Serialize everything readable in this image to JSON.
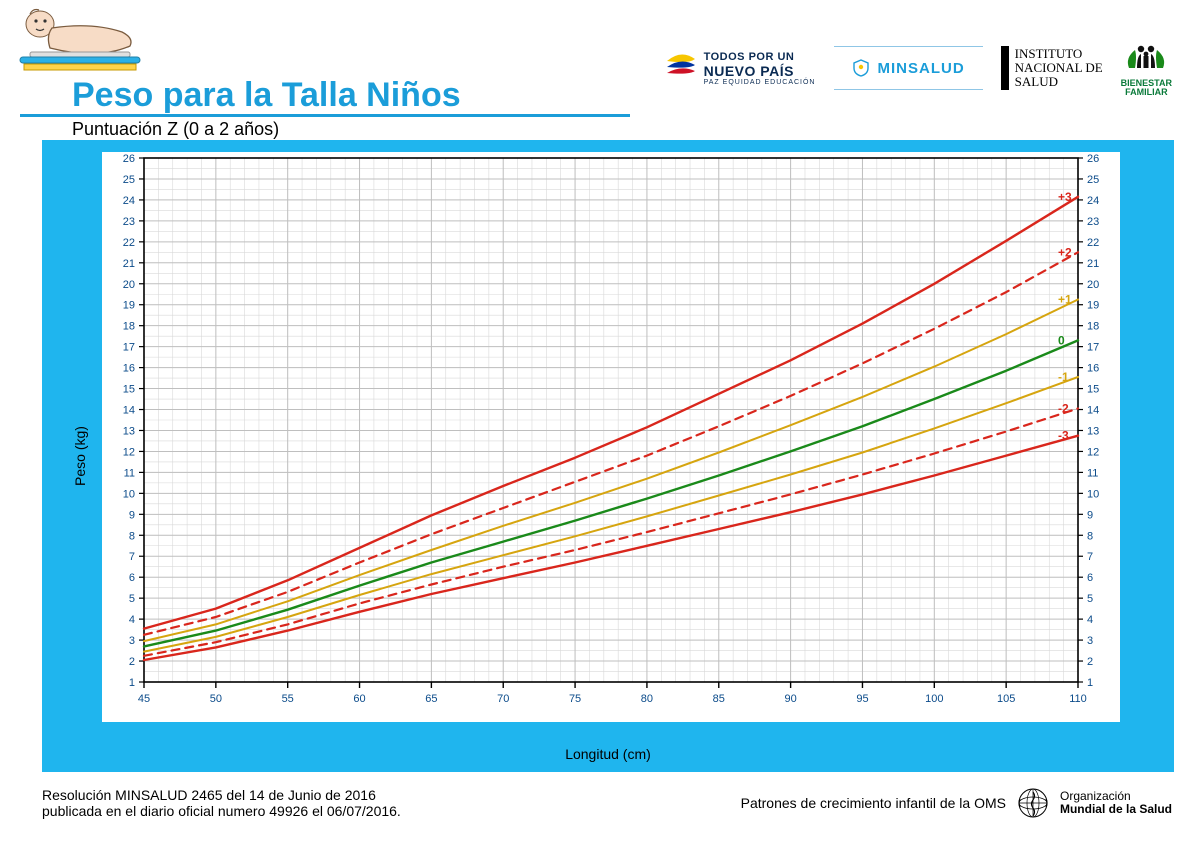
{
  "header": {
    "title": "Peso para la Talla Niños",
    "subtitle": "Puntuación Z (0 a 2 años)",
    "title_color": "#1b9dd9"
  },
  "logos": {
    "todos": {
      "line1": "TODOS POR UN",
      "line2": "NUEVO PAÍS",
      "line3": "PAZ   EQUIDAD   EDUCACIÓN"
    },
    "minsalud": "MINSALUD",
    "ins": {
      "line1": "INSTITUTO",
      "line2": "NACIONAL DE",
      "line3": "SALUD"
    },
    "bienestar": {
      "line1": "BIENESTAR",
      "line2": "FAMILIAR"
    }
  },
  "chart": {
    "type": "line",
    "background_outer": "#1fb5ee",
    "background_inner": "#ffffff",
    "grid_minor_color": "#d9d9d9",
    "grid_major_color": "#bfbfbf",
    "axis_color": "#000000",
    "xlabel": "Longitud (cm)",
    "ylabel": "Peso (kg)",
    "label_fontsize": 14,
    "tick_fontsize": 11,
    "tick_color": "#0b4b8a",
    "xlim": [
      45,
      110
    ],
    "ylim": [
      1,
      26
    ],
    "xtick_step": 5,
    "ytick_step": 1,
    "x_minor_step": 1,
    "y_minor_step": 0.5,
    "series": [
      {
        "name": "+3",
        "label": "+3",
        "color": "#d9261c",
        "width": 2.4,
        "dash": "none",
        "x": [
          45,
          50,
          55,
          60,
          65,
          70,
          75,
          80,
          85,
          90,
          95,
          100,
          105,
          110
        ],
        "y": [
          3.55,
          4.5,
          5.85,
          7.4,
          8.95,
          10.35,
          11.7,
          13.15,
          14.75,
          16.35,
          18.1,
          20.0,
          22.05,
          24.15
        ]
      },
      {
        "name": "+2",
        "label": "+2",
        "color": "#d9261c",
        "width": 2.2,
        "dash": "8,6",
        "x": [
          45,
          50,
          55,
          60,
          65,
          70,
          75,
          80,
          85,
          90,
          95,
          100,
          105,
          110
        ],
        "y": [
          3.25,
          4.1,
          5.3,
          6.7,
          8.05,
          9.3,
          10.55,
          11.8,
          13.2,
          14.65,
          16.2,
          17.85,
          19.6,
          21.5
        ]
      },
      {
        "name": "+1",
        "label": "+1",
        "color": "#d6a50f",
        "width": 2.0,
        "dash": "none",
        "x": [
          45,
          50,
          55,
          60,
          65,
          70,
          75,
          80,
          85,
          90,
          95,
          100,
          105,
          110
        ],
        "y": [
          2.95,
          3.75,
          4.85,
          6.1,
          7.3,
          8.45,
          9.55,
          10.7,
          11.95,
          13.25,
          14.6,
          16.05,
          17.6,
          19.25
        ]
      },
      {
        "name": "0",
        "label": "0",
        "color": "#1a8a1a",
        "width": 2.4,
        "dash": "none",
        "x": [
          45,
          50,
          55,
          60,
          65,
          70,
          75,
          80,
          85,
          90,
          95,
          100,
          105,
          110
        ],
        "y": [
          2.7,
          3.45,
          4.45,
          5.6,
          6.7,
          7.7,
          8.7,
          9.75,
          10.85,
          12.0,
          13.2,
          14.5,
          15.85,
          17.3
        ]
      },
      {
        "name": "-1",
        "label": "-1",
        "color": "#d6a50f",
        "width": 2.0,
        "dash": "none",
        "x": [
          45,
          50,
          55,
          60,
          65,
          70,
          75,
          80,
          85,
          90,
          95,
          100,
          105,
          110
        ],
        "y": [
          2.45,
          3.15,
          4.1,
          5.15,
          6.15,
          7.05,
          7.95,
          8.9,
          9.9,
          10.9,
          11.95,
          13.1,
          14.3,
          15.55
        ]
      },
      {
        "name": "-2",
        "label": "-2",
        "color": "#d9261c",
        "width": 2.2,
        "dash": "8,6",
        "x": [
          45,
          50,
          55,
          60,
          65,
          70,
          75,
          80,
          85,
          90,
          95,
          100,
          105,
          110
        ],
        "y": [
          2.25,
          2.9,
          3.75,
          4.75,
          5.65,
          6.5,
          7.3,
          8.15,
          9.05,
          9.95,
          10.9,
          11.9,
          12.95,
          14.05
        ]
      },
      {
        "name": "-3",
        "label": "-3",
        "color": "#d9261c",
        "width": 2.4,
        "dash": "none",
        "x": [
          45,
          50,
          55,
          60,
          65,
          70,
          75,
          80,
          85,
          90,
          95,
          100,
          105,
          110
        ],
        "y": [
          2.05,
          2.65,
          3.45,
          4.35,
          5.2,
          5.95,
          6.7,
          7.5,
          8.3,
          9.1,
          9.95,
          10.85,
          11.8,
          12.75
        ]
      }
    ],
    "series_label_fontsize": 12,
    "series_label_x_offset": 6
  },
  "footer": {
    "left_line1": "Resolución MINSALUD 2465 del 14 de Junio de 2016",
    "left_line2": "publicada en el diario oficial numero 49926 el 06/07/2016.",
    "right_text": "Patrones de crecimiento infantil de la OMS",
    "oms_line1": "Organización",
    "oms_line2": "Mundial de la Salud"
  }
}
